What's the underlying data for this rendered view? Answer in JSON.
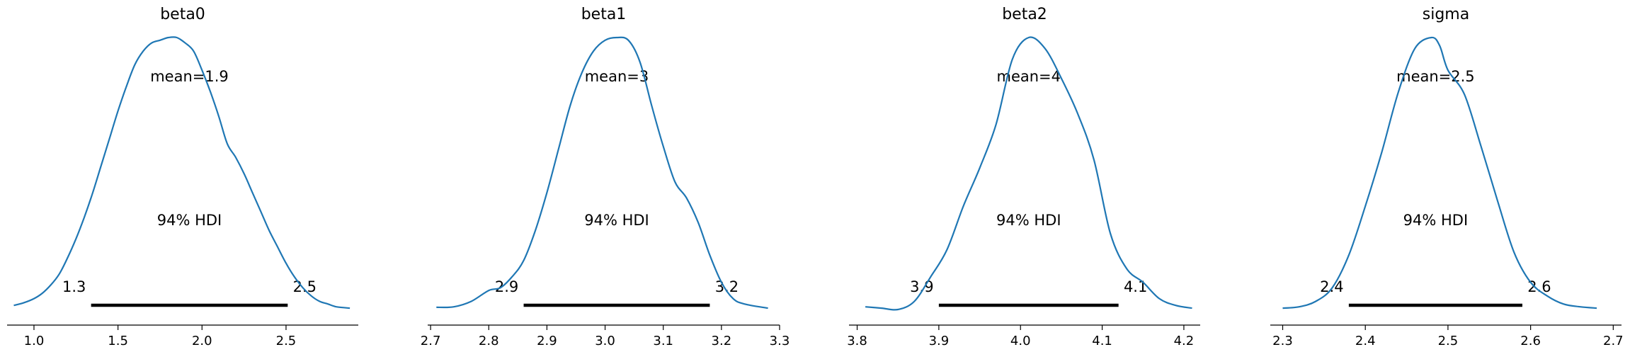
{
  "figure": {
    "background": "#ffffff",
    "curve_color": "#1f77b4",
    "hdi_color": "#000000"
  },
  "chart_data": [
    {
      "type": "line",
      "title": "beta0",
      "mean_label": "mean=1.9",
      "hdi_label": "94% HDI",
      "hdi": [
        1.34,
        2.51
      ],
      "hdi_tick_labels": [
        "1.3",
        "2.5"
      ],
      "xlim": [
        0.84,
        2.93
      ],
      "xticks": [
        1.0,
        1.5,
        2.0,
        2.5
      ],
      "xtick_labels": [
        "1.0",
        "1.5",
        "2.0",
        "2.5"
      ],
      "density": {
        "x": [
          0.88,
          0.94,
          1.0,
          1.05,
          1.1,
          1.15,
          1.2,
          1.25,
          1.3,
          1.35,
          1.4,
          1.45,
          1.5,
          1.55,
          1.6,
          1.65,
          1.7,
          1.75,
          1.8,
          1.85,
          1.9,
          1.95,
          2.0,
          2.05,
          2.1,
          2.15,
          2.2,
          2.25,
          2.3,
          2.35,
          2.4,
          2.45,
          2.5,
          2.55,
          2.6,
          2.65,
          2.7,
          2.75,
          2.8,
          2.88
        ],
        "y": [
          0.015,
          0.025,
          0.04,
          0.06,
          0.09,
          0.13,
          0.19,
          0.26,
          0.34,
          0.43,
          0.53,
          0.63,
          0.73,
          0.82,
          0.9,
          0.95,
          0.98,
          0.99,
          1.0,
          1.0,
          0.98,
          0.95,
          0.88,
          0.8,
          0.71,
          0.61,
          0.56,
          0.5,
          0.43,
          0.36,
          0.29,
          0.23,
          0.17,
          0.12,
          0.08,
          0.05,
          0.03,
          0.02,
          0.01,
          0.005
        ]
      }
    },
    {
      "type": "line",
      "title": "beta1",
      "mean_label": "mean=3",
      "hdi_label": "94% HDI",
      "hdi": [
        2.86,
        3.18
      ],
      "hdi_tick_labels": [
        "2.9",
        "3.2"
      ],
      "xlim": [
        2.695,
        3.3
      ],
      "xticks": [
        2.7,
        2.8,
        2.9,
        3.0,
        3.1,
        3.2,
        3.3
      ],
      "xtick_labels": [
        "2.7",
        "2.8",
        "2.9",
        "3.0",
        "3.1",
        "3.2",
        "3.3"
      ],
      "density": {
        "x": [
          2.71,
          2.74,
          2.77,
          2.8,
          2.82,
          2.84,
          2.86,
          2.88,
          2.9,
          2.92,
          2.94,
          2.96,
          2.98,
          3.0,
          3.02,
          3.04,
          3.06,
          3.08,
          3.1,
          3.12,
          3.14,
          3.16,
          3.18,
          3.2,
          3.22,
          3.24,
          3.28
        ],
        "y": [
          0.008,
          0.01,
          0.03,
          0.07,
          0.08,
          0.12,
          0.18,
          0.29,
          0.43,
          0.59,
          0.75,
          0.87,
          0.95,
          0.99,
          1.0,
          0.99,
          0.91,
          0.75,
          0.6,
          0.47,
          0.41,
          0.32,
          0.2,
          0.1,
          0.04,
          0.02,
          0.005
        ]
      }
    },
    {
      "type": "line",
      "title": "beta2",
      "mean_label": "mean=4",
      "hdi_label": "94% HDI",
      "hdi": [
        3.9,
        4.12
      ],
      "hdi_tick_labels": [
        "3.9",
        "4.1"
      ],
      "xlim": [
        3.79,
        4.22
      ],
      "xticks": [
        3.8,
        3.9,
        4.0,
        4.1,
        4.2
      ],
      "xtick_labels": [
        "3.8",
        "3.9",
        "4.0",
        "4.1",
        "4.2"
      ],
      "density": {
        "x": [
          3.81,
          3.83,
          3.85,
          3.87,
          3.89,
          3.91,
          3.93,
          3.95,
          3.97,
          3.99,
          4.01,
          4.03,
          4.05,
          4.07,
          4.09,
          4.11,
          4.13,
          4.15,
          4.17,
          4.19,
          4.21
        ],
        "y": [
          0.01,
          0.005,
          0.0,
          0.03,
          0.12,
          0.22,
          0.38,
          0.52,
          0.68,
          0.92,
          1.0,
          0.96,
          0.85,
          0.72,
          0.55,
          0.28,
          0.15,
          0.1,
          0.04,
          0.015,
          0.005
        ]
      }
    },
    {
      "type": "line",
      "title": "sigma",
      "mean_label": "mean=2.5",
      "hdi_label": "94% HDI",
      "hdi": [
        2.38,
        2.59
      ],
      "hdi_tick_labels": [
        "2.4",
        "2.6"
      ],
      "xlim": [
        2.285,
        2.71
      ],
      "xticks": [
        2.3,
        2.4,
        2.5,
        2.6,
        2.7
      ],
      "xtick_labels": [
        "2.3",
        "2.4",
        "2.5",
        "2.6",
        "2.7"
      ],
      "density": {
        "x": [
          2.3,
          2.32,
          2.34,
          2.36,
          2.38,
          2.4,
          2.42,
          2.44,
          2.46,
          2.48,
          2.49,
          2.5,
          2.52,
          2.54,
          2.56,
          2.58,
          2.6,
          2.62,
          2.64,
          2.66,
          2.68
        ],
        "y": [
          0.005,
          0.01,
          0.03,
          0.08,
          0.2,
          0.38,
          0.58,
          0.8,
          0.96,
          1.0,
          0.97,
          0.88,
          0.79,
          0.6,
          0.4,
          0.21,
          0.1,
          0.05,
          0.02,
          0.01,
          0.005
        ]
      }
    }
  ]
}
